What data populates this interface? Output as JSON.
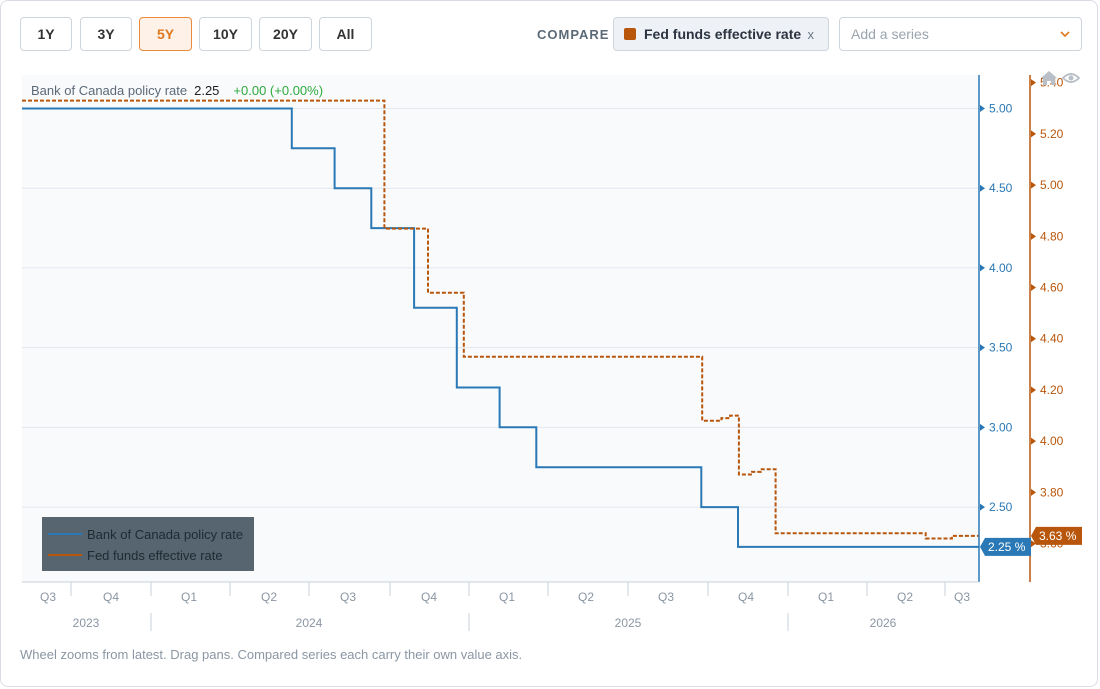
{
  "toolbar": {
    "ranges": [
      {
        "label": "1Y",
        "active": false
      },
      {
        "label": "3Y",
        "active": false
      },
      {
        "label": "5Y",
        "active": true
      },
      {
        "label": "10Y",
        "active": false
      },
      {
        "label": "20Y",
        "active": false
      },
      {
        "label": "All",
        "active": false
      }
    ],
    "compare_label": "COMPARE",
    "compare_chip": {
      "label": "Fed funds effective rate",
      "close": "x",
      "color": "#b8560c"
    },
    "add_series_placeholder": "Add a series"
  },
  "header": {
    "series_name": "Bank of Canada policy rate",
    "value": "2.25",
    "change": "+0.00 (+0.00%)",
    "change_color": "#2eaa3c"
  },
  "chart_data": {
    "type": "line",
    "x_axis": {
      "quarters": [
        "Q3",
        "Q4",
        "Q1",
        "Q2",
        "Q3",
        "Q4",
        "Q1",
        "Q2",
        "Q3",
        "Q4",
        "Q1",
        "Q2",
        "Q3"
      ],
      "years": [
        "2023",
        "2024",
        "2025",
        "2026"
      ],
      "range": [
        "2023-08",
        "2026-08"
      ]
    },
    "y_left": {
      "ylim": [
        2.03,
        5.21
      ],
      "ticks": [
        "2.50",
        "3.00",
        "3.50",
        "4.00",
        "4.50",
        "5.00"
      ],
      "color": "#2a78b5"
    },
    "y_right": {
      "ylim": [
        3.45,
        5.43
      ],
      "ticks": [
        "3.60",
        "3.80",
        "4.00",
        "4.20",
        "4.40",
        "4.60",
        "4.80",
        "5.00",
        "5.20",
        "5.40"
      ],
      "color": "#b8560c"
    },
    "series": [
      {
        "name": "Bank of Canada policy rate",
        "color": "#2a78b5",
        "axis": "left",
        "style": "solid",
        "end_label": "2.25 %",
        "steps": [
          [
            "2023-08-01",
            5.0
          ],
          [
            "2024-06-05",
            4.75
          ],
          [
            "2024-07-24",
            4.5
          ],
          [
            "2024-09-04",
            4.25
          ],
          [
            "2024-10-23",
            3.75
          ],
          [
            "2024-12-11",
            3.25
          ],
          [
            "2025-01-29",
            3.0
          ],
          [
            "2025-03-12",
            2.75
          ],
          [
            "2025-09-17",
            2.5
          ],
          [
            "2025-10-29",
            2.25
          ],
          [
            "2026-08-01",
            2.25
          ]
        ]
      },
      {
        "name": "Fed funds effective rate",
        "color": "#b8560c",
        "axis": "right",
        "style": "dashed",
        "end_label": "3.63 %",
        "steps": [
          [
            "2023-08-01",
            5.33
          ],
          [
            "2024-09-19",
            4.83
          ],
          [
            "2024-11-08",
            4.58
          ],
          [
            "2024-12-19",
            4.33
          ],
          [
            "2025-09-18",
            4.08
          ],
          [
            "2025-10-10",
            4.09
          ],
          [
            "2025-10-20",
            4.1
          ],
          [
            "2025-10-30",
            3.87
          ],
          [
            "2025-11-14",
            3.88
          ],
          [
            "2025-11-24",
            3.89
          ],
          [
            "2025-12-11",
            3.64
          ],
          [
            "2026-06-01",
            3.62
          ],
          [
            "2026-07-01",
            3.63
          ],
          [
            "2026-08-01",
            3.63
          ]
        ]
      }
    ],
    "legend": {
      "position": "bottom-left",
      "items": [
        "Bank of Canada policy rate",
        "Fed funds effective rate"
      ]
    },
    "grid": true
  },
  "footer": {
    "note": "Wheel zooms from latest. Drag pans. Compared series each carry their own value axis."
  }
}
